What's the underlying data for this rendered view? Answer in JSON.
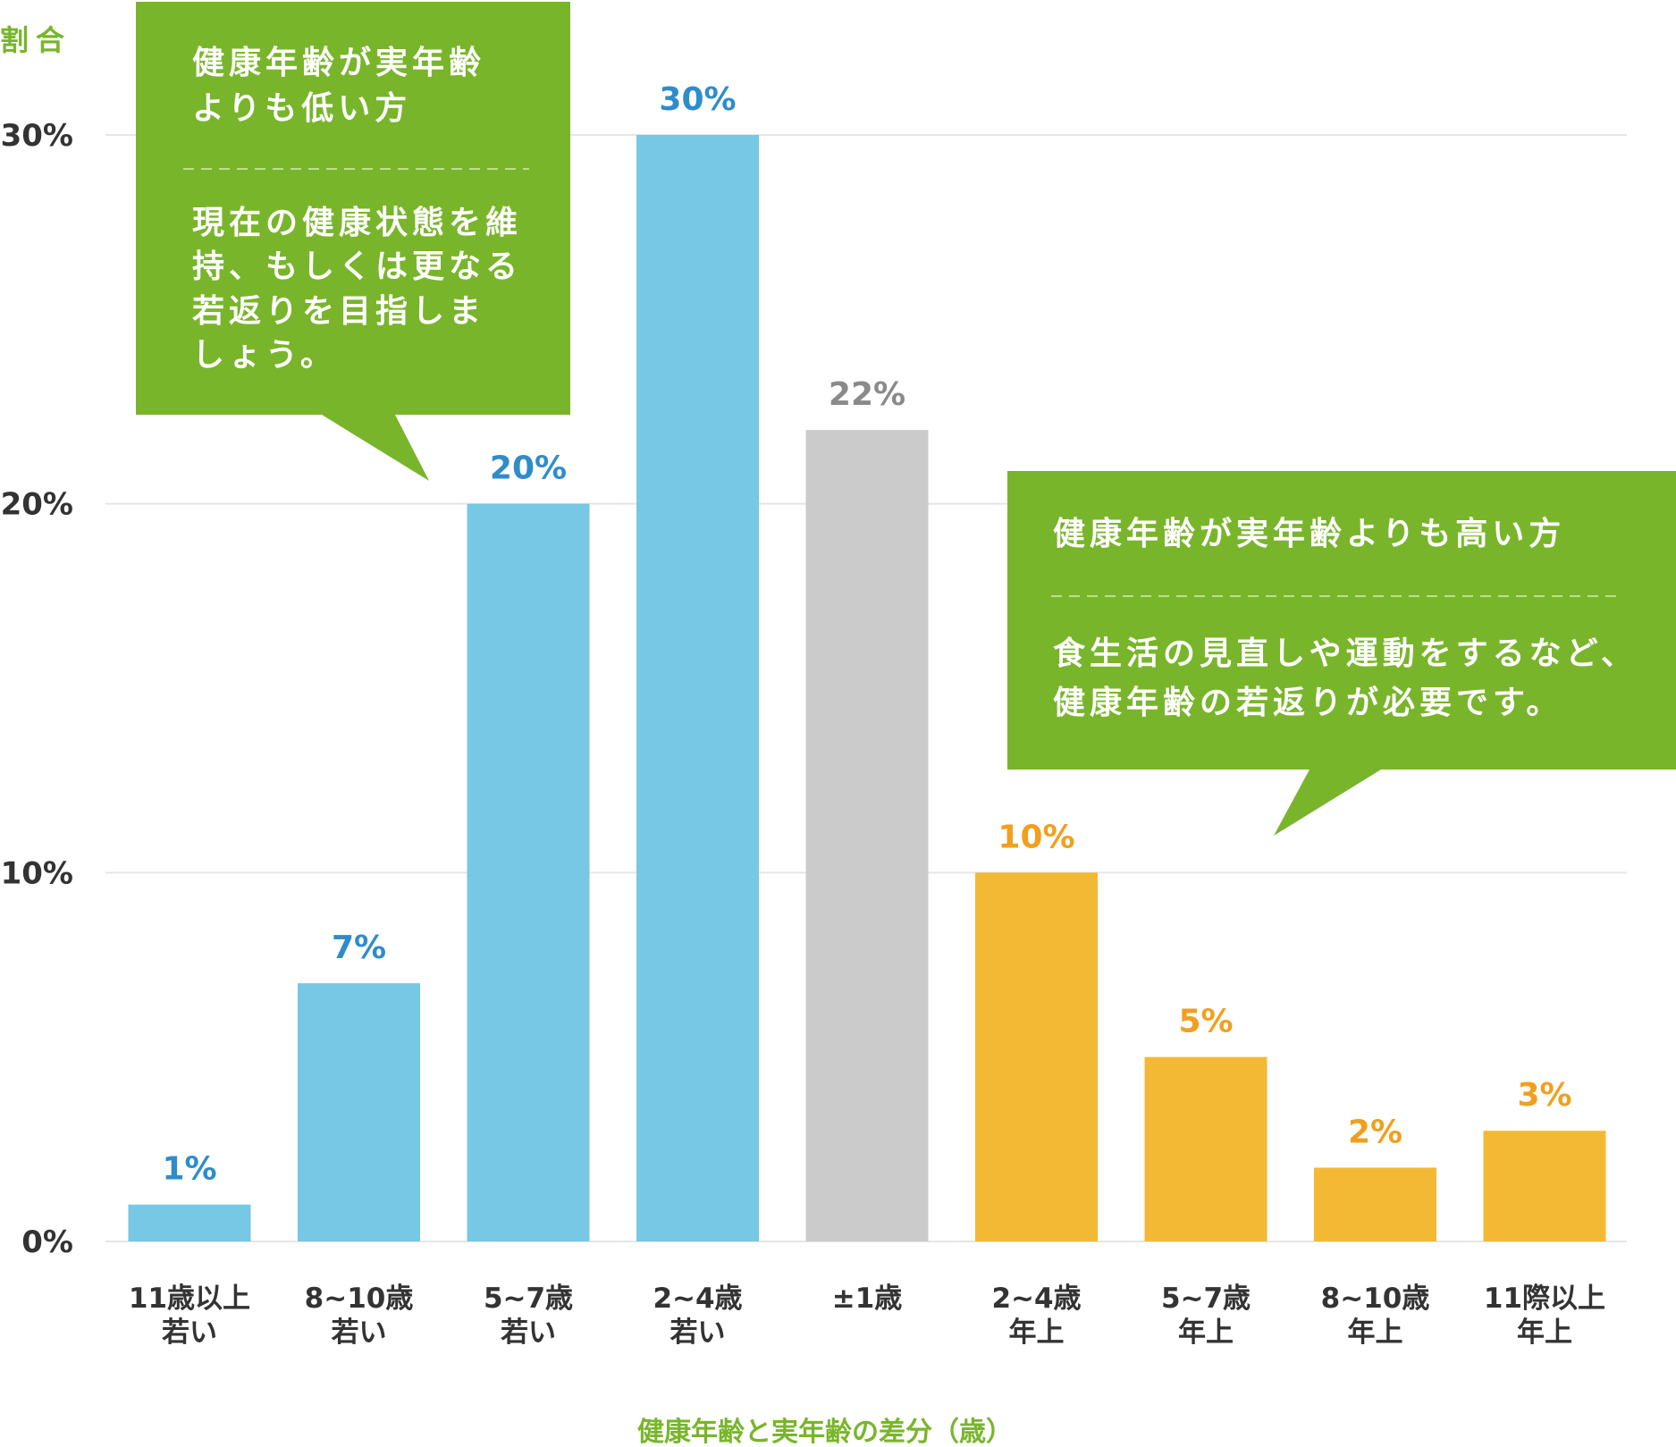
{
  "chart_data": {
    "type": "bar",
    "ylabel": "割合",
    "xlabel": "健康年齢と実年齢の差分（歳）",
    "ylim": [
      0,
      30
    ],
    "yticks": [
      "0%",
      "10%",
      "20%",
      "30%"
    ],
    "grid": true,
    "categories": [
      [
        "11歳以上",
        "若い"
      ],
      [
        "8~10歳",
        "若い"
      ],
      [
        "5~7歳",
        "若い"
      ],
      [
        "2~4歳",
        "若い"
      ],
      [
        "±1歳",
        ""
      ],
      [
        "2~4歳",
        "年上"
      ],
      [
        "5~7歳",
        "年上"
      ],
      [
        "8~10歳",
        "年上"
      ],
      [
        "11際以上",
        "年上"
      ]
    ],
    "values": [
      1,
      7,
      20,
      30,
      22,
      10,
      5,
      2,
      3
    ],
    "value_labels": [
      "1%",
      "7%",
      "20%",
      "30%",
      "22%",
      "10%",
      "5%",
      "2%",
      "3%"
    ],
    "groups": [
      "younger",
      "younger",
      "younger",
      "younger",
      "neutral",
      "older",
      "older",
      "older",
      "older"
    ],
    "colors": {
      "younger_bar": "#76c8e4",
      "younger_label": "#2f8ccb",
      "neutral_bar": "#cbcbcb",
      "neutral_label": "#8a8a8a",
      "older_bar": "#f4b934",
      "older_label": "#f0a01e",
      "callout": "#79b52b",
      "axis_label": "#79b52b",
      "grid": "#e6e6e6"
    },
    "annotations": [
      {
        "id": "younger",
        "title_lines": [
          "健康年齢が実年齢",
          "よりも低い方"
        ],
        "body_lines": [
          "現在の健康状態を維",
          "持、もしくは更なる",
          "若返りを目指しま",
          "しょう。"
        ]
      },
      {
        "id": "older",
        "title_lines": [
          "健康年齢が実年齢よりも高い方"
        ],
        "body_lines": [
          "食生活の見直しや運動をするなど、",
          "健康年齢の若返りが必要です。"
        ]
      }
    ]
  }
}
